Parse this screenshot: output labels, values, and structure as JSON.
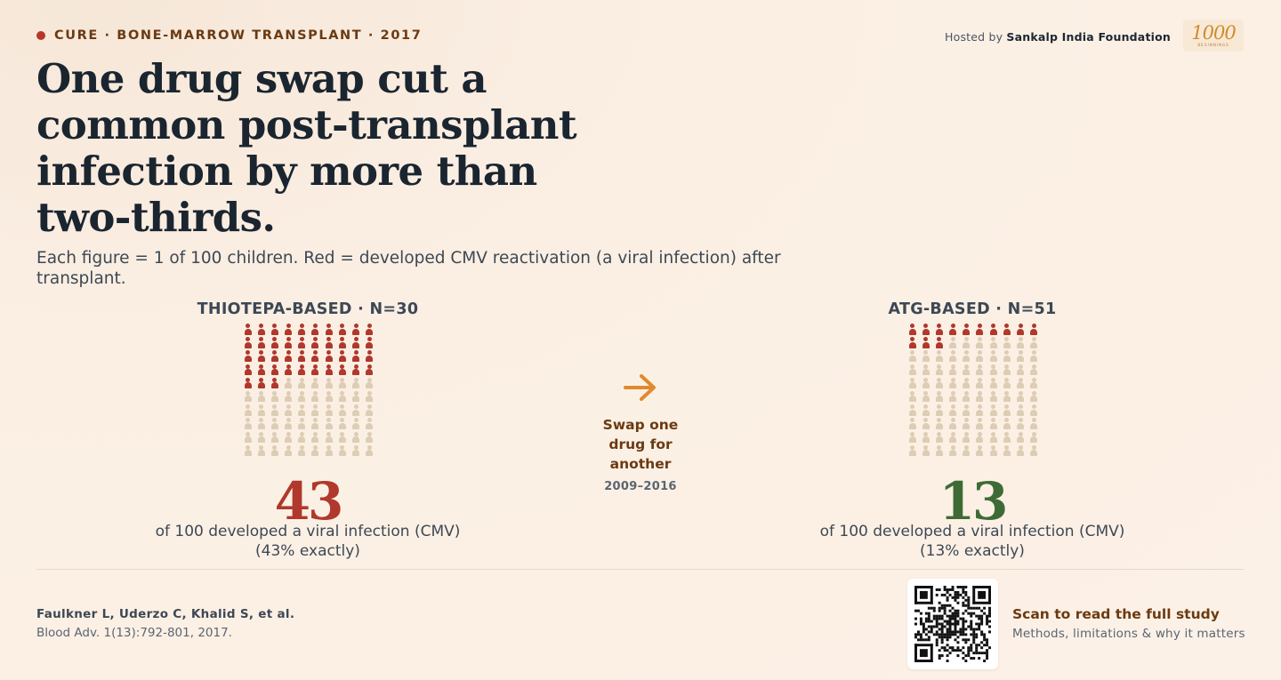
{
  "header": {
    "eyebrow": "CURE · BONE-MARROW TRANSPLANT · 2017",
    "hosted_prefix": "Hosted by",
    "hosted_org": "Sankalp India Foundation",
    "logo_number": "1000"
  },
  "headline": "One drug swap cut a common post-transplant infection by more than two-thirds.",
  "subtitle": "Each figure = 1 of 100 children. Red = developed CMV reactivation (a viral infection) after transplant.",
  "groups": [
    {
      "title": "THIOTEPA-BASED · N=30",
      "infected_per_100": 43,
      "number": "43",
      "caption_line1": "of 100 developed a viral infection (CMV)",
      "caption_line2": "(43% exactly)",
      "color": "#b0382c"
    },
    {
      "title": "ATG-BASED · N=51",
      "infected_per_100": 13,
      "number": "13",
      "caption_line1": "of 100 developed a viral infection (CMV)",
      "caption_line2": "(13% exactly)",
      "color": "#3e6b35"
    }
  ],
  "middle": {
    "arrow_icon": "arrow-right-icon",
    "swap_label": "Swap one drug for another",
    "years": "2009–2016",
    "accent": "#e08a2e"
  },
  "footer": {
    "authors": "Faulkner L, Uderzo C, Khalid S, et al.",
    "journal": "Blood Adv. 1(13):792-801, 2017.",
    "scan_title": "Scan to read the full study",
    "scan_subtitle": "Methods, limitations & why it matters"
  },
  "colors": {
    "infected": "#b0382c",
    "not_infected": "#dccdb4",
    "brown": "#6b3a12",
    "green": "#3e6b35"
  }
}
